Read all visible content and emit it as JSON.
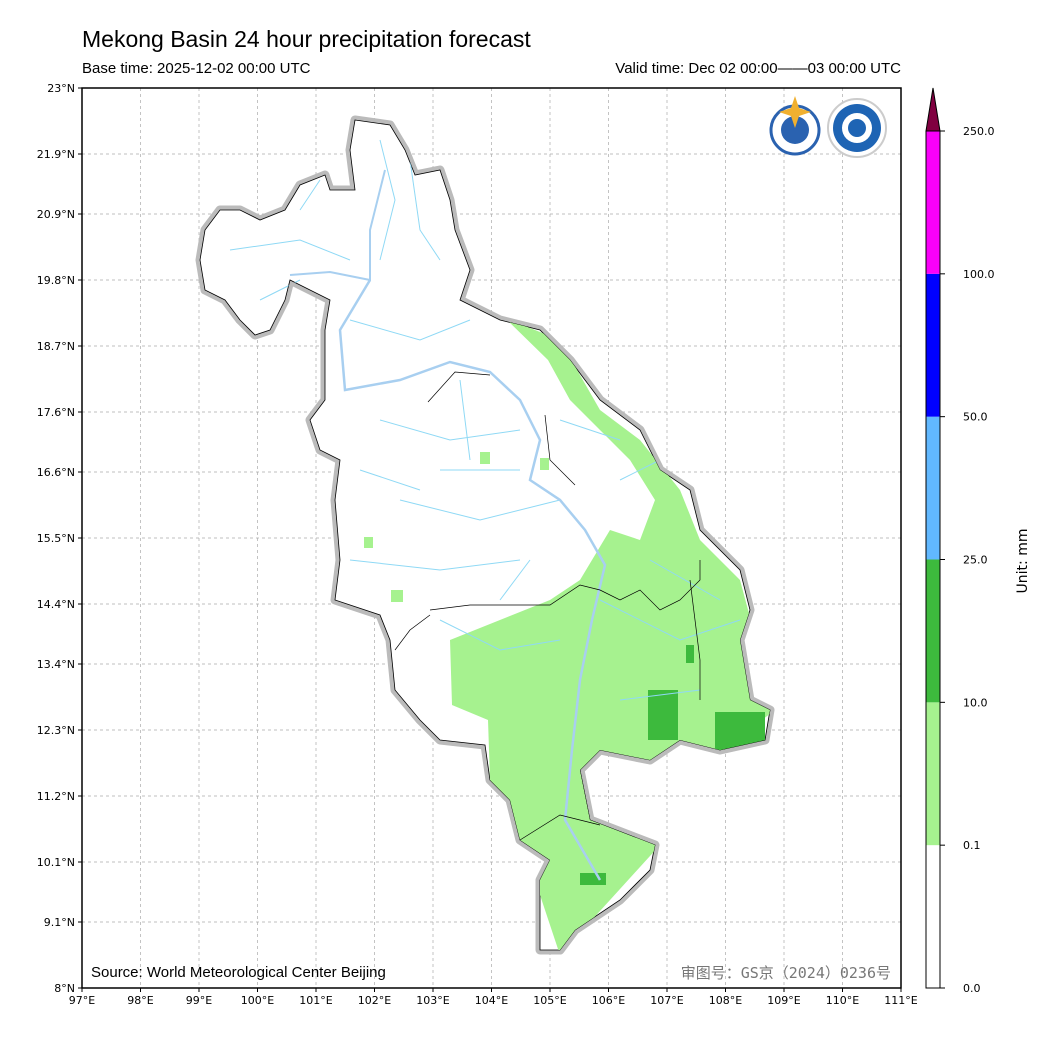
{
  "header": {
    "title": "Mekong Basin 24 hour precipitation forecast",
    "base_time": "Base time: 2025-12-02 00:00 UTC",
    "valid_time": "Valid time: Dec 02 00:00——03 00:00 UTC"
  },
  "map": {
    "lon_labels": [
      "97°E",
      "98°E",
      "99°E",
      "100°E",
      "101°E",
      "102°E",
      "103°E",
      "104°E",
      "105°E",
      "106°E",
      "107°E",
      "108°E",
      "109°E",
      "110°E",
      "111°E"
    ],
    "lat_labels": [
      "23°N",
      "21.9°N",
      "20.9°N",
      "19.8°N",
      "18.7°N",
      "17.6°N",
      "16.6°N",
      "15.5°N",
      "14.4°N",
      "13.4°N",
      "12.3°N",
      "11.2°N",
      "10.1°N",
      "9.1°N",
      "8°N"
    ],
    "lat_values": [
      23,
      21.9,
      20.9,
      19.8,
      18.7,
      17.6,
      16.6,
      15.5,
      14.4,
      13.4,
      12.3,
      11.2,
      10.1,
      9.1,
      8
    ],
    "extent": {
      "lon": [
        97,
        111
      ],
      "lat": [
        8,
        23
      ]
    },
    "source": "Source: World Meteorological Center Beijing",
    "approval": "审图号：GS京（2024）0236号"
  },
  "colorbar": {
    "unit": "Unit: mm",
    "levels": [
      "0.0",
      "0.1",
      "10.0",
      "25.0",
      "50.0",
      "100.0",
      "250.0"
    ],
    "colors": [
      "#ffffff",
      "#a6f28f",
      "#3dba3d",
      "#61b8ff",
      "#0000ff",
      "#fa00fa",
      "#800040"
    ]
  }
}
